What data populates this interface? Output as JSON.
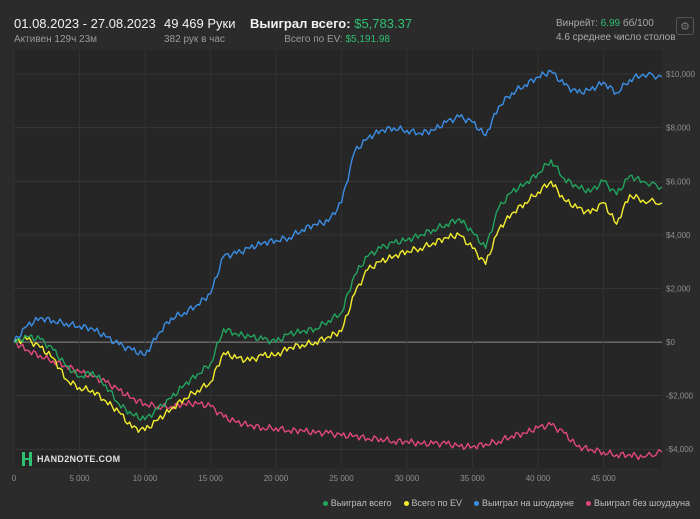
{
  "header": {
    "date_range": "01.08.2023 - 27.08.2023",
    "active_time": "Активен 129ч 23м",
    "hands": "49 469 Руки",
    "hands_per_hour": "382 рук в час",
    "won_label": "Выиграл всего:",
    "won_value": "$5,783.37",
    "ev_label": "Всего по EV:",
    "ev_value": "$5,191.98",
    "winrate_label": "Винрейт:",
    "winrate_value": "6.99",
    "winrate_unit": "бб/100",
    "avg_tables": "4.6 среднее число столов",
    "settings_icon": "gear-icon"
  },
  "logo": {
    "text": "HAND2NOTE.COM"
  },
  "chart_data": {
    "type": "line",
    "xlim": [
      0,
      49469
    ],
    "ylim": [
      -4700,
      10900
    ],
    "x_ticks": [
      0,
      5000,
      10000,
      15000,
      20000,
      25000,
      30000,
      35000,
      40000,
      45000
    ],
    "x_tick_labels": [
      "0",
      "5 000",
      "10 000",
      "15 000",
      "20 000",
      "25 000",
      "30 000",
      "35 000",
      "40 000",
      "45 000"
    ],
    "y_ticks": [
      -4000,
      -2000,
      0,
      2000,
      4000,
      6000,
      8000,
      10000
    ],
    "y_tick_labels": [
      "-$4,000",
      "-$2,000",
      "$0",
      "$2,000",
      "$4,000",
      "$6,000",
      "$8,000",
      "$10,000"
    ],
    "grid": true,
    "legend_position": "bottom-right",
    "x": [
      0,
      1000,
      2000,
      3000,
      4000,
      5000,
      6000,
      7000,
      8000,
      9000,
      10000,
      11000,
      12000,
      13000,
      14000,
      15000,
      16000,
      17000,
      18000,
      19000,
      20000,
      21000,
      22000,
      23000,
      24000,
      25000,
      26000,
      27000,
      28000,
      29000,
      30000,
      31000,
      32000,
      33000,
      34000,
      35000,
      36000,
      37000,
      38000,
      39000,
      40000,
      41000,
      42000,
      43000,
      44000,
      45000,
      46000,
      47000,
      48000,
      49469
    ],
    "series": [
      {
        "name": "Выиграл всего",
        "color": "#22a45d",
        "values": [
          0,
          200,
          100,
          -300,
          -900,
          -1300,
          -1100,
          -1600,
          -2300,
          -2700,
          -2900,
          -2500,
          -2100,
          -1600,
          -1200,
          -800,
          500,
          300,
          200,
          100,
          0,
          300,
          400,
          500,
          800,
          1100,
          2500,
          3200,
          3500,
          3700,
          3800,
          4000,
          4200,
          4400,
          4600,
          4100,
          3500,
          5000,
          5600,
          5900,
          6300,
          6800,
          6100,
          5800,
          5600,
          6000,
          5500,
          6200,
          6000,
          5783
        ]
      },
      {
        "name": "Всего по EV",
        "color": "#f4ee2c",
        "values": [
          0,
          100,
          -200,
          -600,
          -1400,
          -1700,
          -1800,
          -2200,
          -2600,
          -3200,
          -3300,
          -2900,
          -2500,
          -2100,
          -1800,
          -1500,
          -400,
          -600,
          -700,
          -500,
          -500,
          -200,
          -100,
          0,
          200,
          400,
          1800,
          2700,
          3000,
          3200,
          3400,
          3500,
          3700,
          3900,
          4000,
          3500,
          2900,
          4200,
          4800,
          5200,
          5600,
          6000,
          5300,
          5000,
          4800,
          5200,
          4400,
          5500,
          5300,
          5192
        ]
      },
      {
        "name": "Выиграл на шоудауне",
        "color": "#3b8ee6",
        "values": [
          0,
          600,
          900,
          800,
          700,
          600,
          500,
          200,
          -100,
          -300,
          -500,
          300,
          900,
          1100,
          1400,
          1800,
          3200,
          3300,
          3500,
          3700,
          3800,
          3900,
          4200,
          4400,
          4500,
          5200,
          7100,
          7600,
          7900,
          8000,
          7900,
          7800,
          7900,
          8200,
          8400,
          8200,
          7700,
          8800,
          9300,
          9600,
          9900,
          10100,
          9600,
          9300,
          9400,
          9700,
          9300,
          9800,
          10000,
          9900
        ]
      },
      {
        "name": "Выиграл без шоудауна",
        "color": "#e2487a",
        "values": [
          0,
          -300,
          -500,
          -700,
          -900,
          -1100,
          -1300,
          -1500,
          -1800,
          -2100,
          -2300,
          -2400,
          -2400,
          -2300,
          -2300,
          -2400,
          -2800,
          -3000,
          -3100,
          -3200,
          -3200,
          -3300,
          -3300,
          -3400,
          -3400,
          -3500,
          -3500,
          -3600,
          -3600,
          -3700,
          -3700,
          -3800,
          -3800,
          -3800,
          -3900,
          -3900,
          -3800,
          -3700,
          -3500,
          -3400,
          -3200,
          -3100,
          -3400,
          -3900,
          -4000,
          -4100,
          -4200,
          -4200,
          -4300,
          -4100
        ]
      }
    ]
  }
}
